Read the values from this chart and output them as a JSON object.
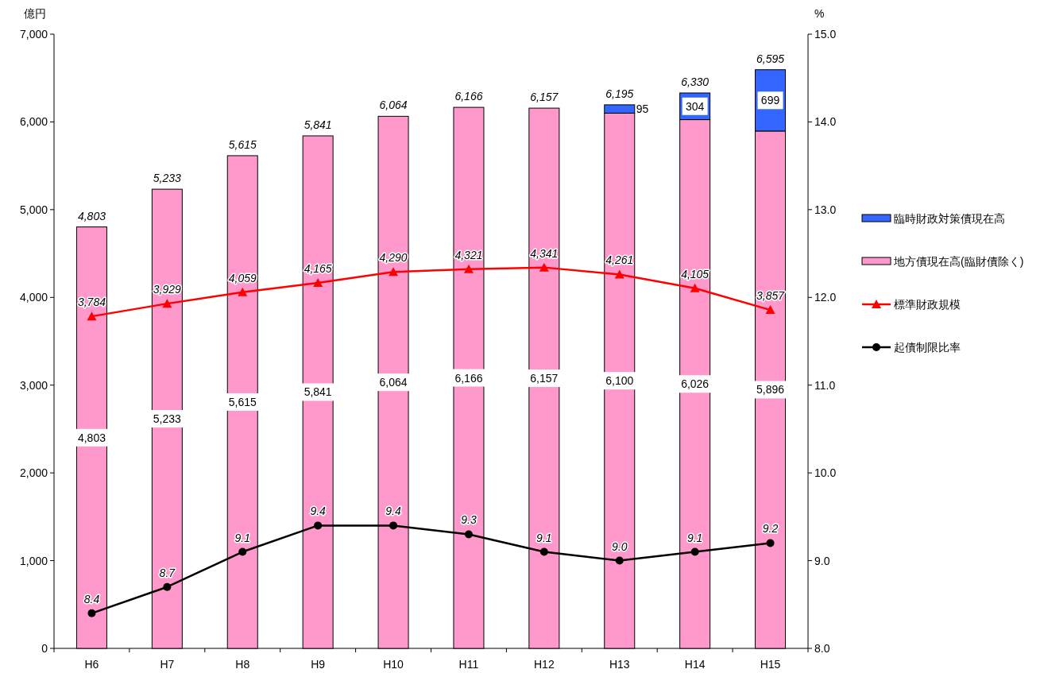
{
  "chart_data": {
    "type": "bar",
    "stacked": true,
    "ylabel": "億円",
    "y2label": "%",
    "categories": [
      "H6",
      "H7",
      "H8",
      "H9",
      "H10",
      "H11",
      "H12",
      "H13",
      "H14",
      "H15"
    ],
    "ylim": [
      0,
      7000
    ],
    "yticks": [
      0,
      {
        "value": 1000,
        "label": "1,000"
      },
      {
        "value": 2000,
        "label": "2,000"
      },
      {
        "value": 3000,
        "label": "3,000"
      },
      {
        "value": 4000,
        "label": "4,000"
      },
      {
        "value": 5000,
        "label": "5,000"
      },
      {
        "value": 6000,
        "label": "6,000"
      },
      {
        "value": 7000,
        "label": "7,000"
      }
    ],
    "y2lim": [
      8,
      15
    ],
    "y2ticks": [
      {
        "value": 8,
        "label": "8.0"
      },
      {
        "value": 9,
        "label": "9.0"
      },
      {
        "value": 10,
        "label": "10.0"
      },
      {
        "value": 11,
        "label": "11.0"
      },
      {
        "value": 12,
        "label": "12.0"
      },
      {
        "value": 13,
        "label": "13.0"
      },
      {
        "value": 14,
        "label": "14.0"
      },
      {
        "value": 15,
        "label": "15.0"
      }
    ],
    "legend": "right",
    "series": [
      {
        "name": "地方債現在高(臨財債除く)",
        "color": "#ff99cc",
        "values": [
          4803,
          5233,
          5615,
          5841,
          6064,
          6166,
          6157,
          6100,
          6026,
          5896
        ],
        "value_labels": [
          "4,803",
          "5,233",
          "5,615",
          "5,841",
          "6,064",
          "6,166",
          "6,157",
          "6,100",
          "6,026",
          "5,896"
        ]
      },
      {
        "name": "臨時財政対策債現在高",
        "color": "#3366ff",
        "values": [
          null,
          null,
          null,
          null,
          null,
          null,
          null,
          95,
          304,
          699
        ],
        "value_labels": [
          null,
          null,
          null,
          null,
          null,
          null,
          null,
          "95",
          "304",
          "699"
        ]
      },
      {
        "name": "標準財政規模",
        "type": "line",
        "color": "#ff0000",
        "marker": "triangle",
        "values": [
          3784,
          3929,
          4059,
          4165,
          4290,
          4321,
          4341,
          4261,
          4105,
          3857
        ],
        "value_labels": [
          "3,784",
          "3,929",
          "4,059",
          "4,165",
          "4,290",
          "4,321",
          "4,341",
          "4,261",
          "4,105",
          "3,857"
        ]
      },
      {
        "name": "起債制限比率",
        "type": "line",
        "axis": "y2",
        "color": "#000000",
        "marker": "circle",
        "values": [
          8.4,
          8.7,
          9.1,
          9.4,
          9.4,
          9.3,
          9.1,
          9.0,
          9.1,
          9.2
        ],
        "value_labels": [
          "8.4",
          "8.7",
          "9.1",
          "9.4",
          "9.4",
          "9.3",
          "9.1",
          "9.0",
          "9.1",
          "9.2"
        ]
      }
    ],
    "totals": [
      "4,803",
      "5,233",
      "5,615",
      "5,841",
      "6,064",
      "6,166",
      "6,157",
      "6,195",
      "6,330",
      "6,595"
    ]
  }
}
